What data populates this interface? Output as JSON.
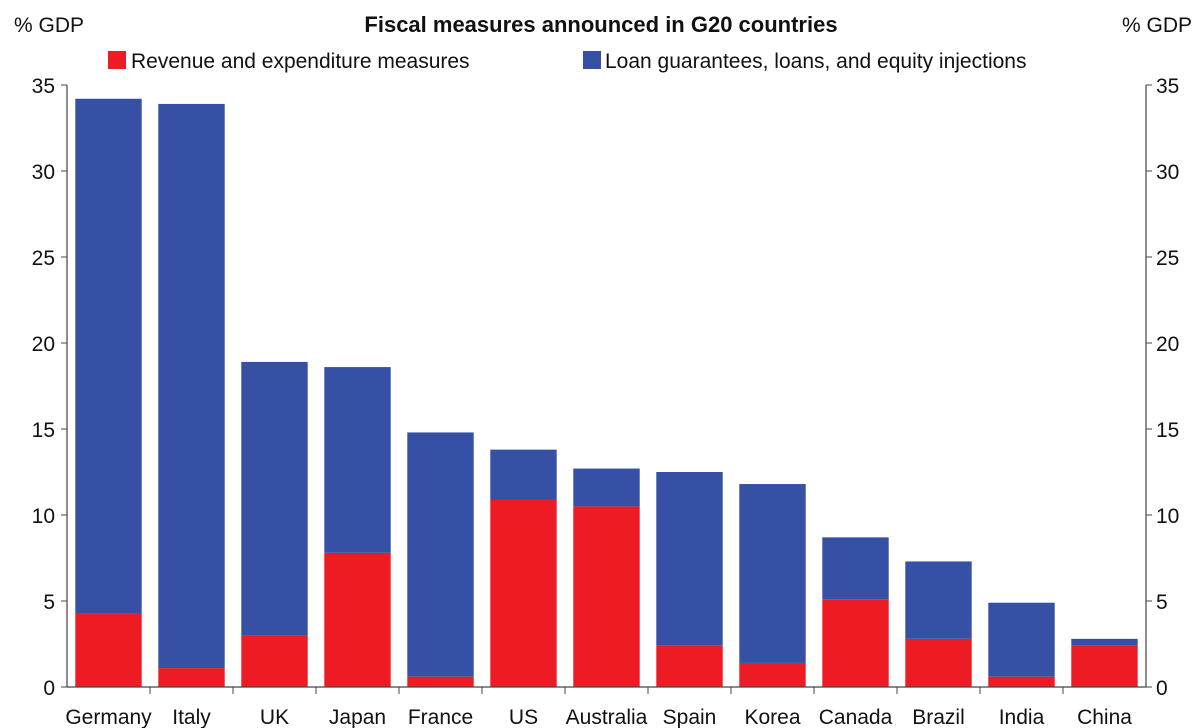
{
  "chart_data": {
    "type": "bar",
    "stacked": true,
    "title": "Fiscal measures announced in G20 countries",
    "ylabel_left": "% GDP",
    "ylabel_right": "% GDP",
    "ylim": [
      0,
      35
    ],
    "yticks": [
      0,
      5,
      10,
      15,
      20,
      25,
      30,
      35
    ],
    "grid": false,
    "legend_placement": "top",
    "categories": [
      "Germany",
      "Italy",
      "UK",
      "Japan",
      "France",
      "US",
      "Australia",
      "Spain",
      "Korea",
      "Canada",
      "Brazil",
      "India",
      "China"
    ],
    "series": [
      {
        "name": "Revenue and expenditure measures",
        "color": "#ed1c24",
        "values": [
          4.3,
          1.1,
          3.0,
          7.8,
          0.6,
          10.9,
          10.5,
          2.4,
          1.4,
          5.1,
          2.8,
          0.6,
          2.4
        ]
      },
      {
        "name": "Loan guarantees, loans, and equity injections",
        "color": "#3550a4",
        "values": [
          29.9,
          32.8,
          15.9,
          10.8,
          14.2,
          2.9,
          2.2,
          10.1,
          10.4,
          3.6,
          4.5,
          4.3,
          0.4
        ]
      }
    ]
  }
}
